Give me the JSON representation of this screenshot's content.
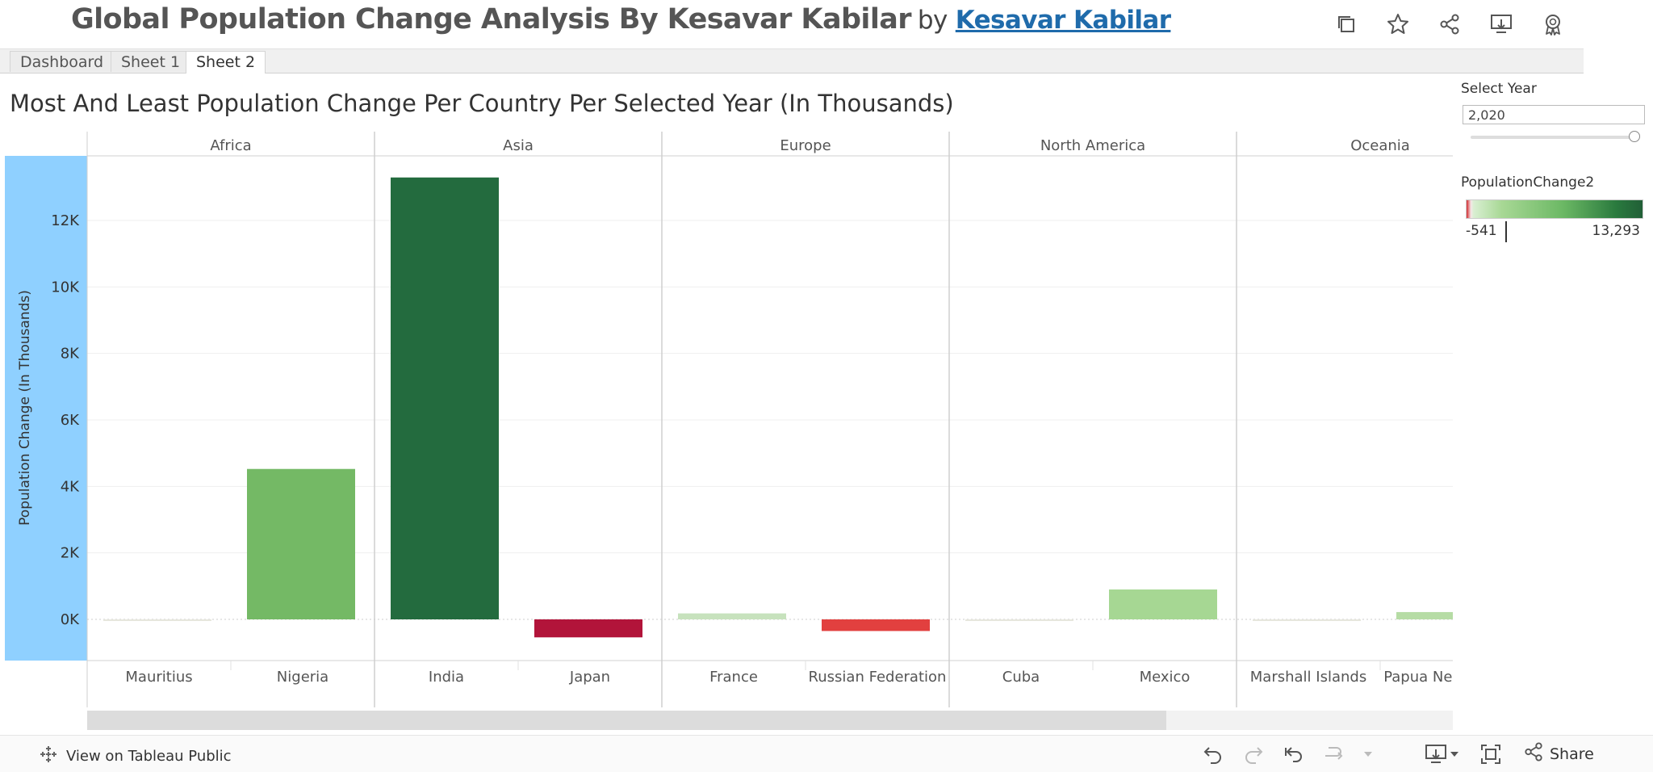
{
  "header": {
    "title": "Global Population Change Analysis By Kesavar Kabilar",
    "by": "by",
    "author": "Kesavar Kabilar",
    "icons": [
      "duplicate-icon",
      "star-icon",
      "share-icon",
      "download-icon",
      "badge-icon"
    ]
  },
  "tabs": [
    {
      "label": "Dashboard",
      "active": false
    },
    {
      "label": "Sheet 1",
      "active": false
    },
    {
      "label": "Sheet 2",
      "active": true
    }
  ],
  "viz": {
    "title": "Most And Least Population Change Per Country Per Selected Year (In Thousands)"
  },
  "controls": {
    "select_year_label": "Select Year",
    "select_year_value": "2,020",
    "legend_title": "PopulationChange2",
    "legend_min": "-541",
    "legend_max": "13,293"
  },
  "chart_data": {
    "type": "bar",
    "ylabel": "Population Change (In Thousands)",
    "ylim": [
      -1200,
      14000
    ],
    "yticks": [
      0,
      2000,
      4000,
      6000,
      8000,
      10000,
      12000
    ],
    "ytick_labels": [
      "0K",
      "2K",
      "4K",
      "6K",
      "8K",
      "10K",
      "12K"
    ],
    "panels": [
      {
        "name": "Africa",
        "bars": [
          {
            "category": "Mauritius",
            "value": -5,
            "color": "#e6e6dc"
          },
          {
            "category": "Nigeria",
            "value": 4525,
            "color": "#74b965"
          }
        ]
      },
      {
        "name": "Asia",
        "bars": [
          {
            "category": "India",
            "value": 13293,
            "color": "#236b3e"
          },
          {
            "category": "Japan",
            "value": -541,
            "color": "#b2143a"
          }
        ]
      },
      {
        "name": "Europe",
        "bars": [
          {
            "category": "France",
            "value": 180,
            "color": "#c7e2bd"
          },
          {
            "category": "Russian Federation",
            "value": -350,
            "color": "#e2403f"
          }
        ]
      },
      {
        "name": "North America",
        "bars": [
          {
            "category": "Cuba",
            "value": -5,
            "color": "#e6e6dc"
          },
          {
            "category": "Mexico",
            "value": 900,
            "color": "#a6d793"
          }
        ]
      },
      {
        "name": "Oceania",
        "bars": [
          {
            "category": "Marshall Islands",
            "value": -3,
            "color": "#e6e6dc"
          },
          {
            "category": "Papua New Guinea",
            "value": 220,
            "color": "#b6dca5"
          }
        ]
      }
    ]
  },
  "footer": {
    "view_label": "View on Tableau Public",
    "share_label": "Share"
  }
}
